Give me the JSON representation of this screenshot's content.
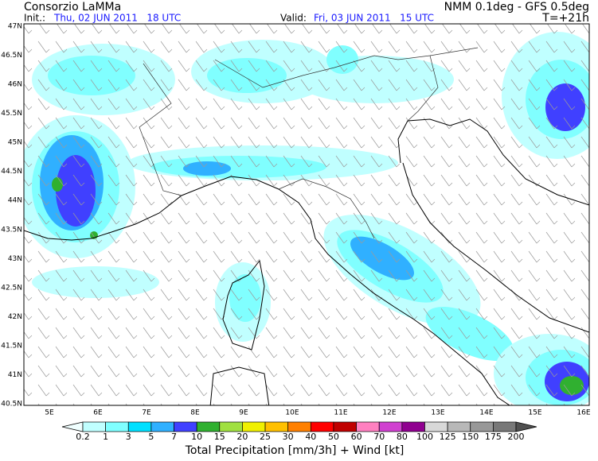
{
  "header": {
    "title": "Consorzio LaMMa",
    "model": "NMM 0.1deg - GFS 0.5deg",
    "init_label": "Init.:",
    "init_time": "Thu, 02 JUN 2011   18 UTC",
    "valid_label": "Valid:",
    "valid_time": "Fri, 03 JUN 2011   15 UTC",
    "lead_time": "T=+21h"
  },
  "map": {
    "lat_labels": [
      "47N",
      "46.5N",
      "46N",
      "45.5N",
      "45N",
      "44.5N",
      "44N",
      "43.5N",
      "43N",
      "42.5N",
      "42N",
      "41.5N",
      "41N",
      "40.5N"
    ],
    "lon_labels": [
      "5E",
      "6E",
      "7E",
      "8E",
      "9E",
      "10E",
      "11E",
      "12E",
      "13E",
      "14E",
      "15E",
      "16E"
    ]
  },
  "colorbar": {
    "levels": [
      0.2,
      1,
      3,
      5,
      7,
      10,
      15,
      20,
      25,
      30,
      40,
      50,
      60,
      70,
      80,
      100,
      125,
      150,
      175,
      200
    ],
    "colors": [
      "#f0ffff",
      "#c0ffff",
      "#80ffff",
      "#00e0ff",
      "#30b0ff",
      "#4040ff",
      "#30b030",
      "#a0e040",
      "#f0f000",
      "#ffc000",
      "#ff8000",
      "#ff0000",
      "#c00000",
      "#ff80c0",
      "#d040d0",
      "#900090",
      "#d8d8d8",
      "#b8b8b8",
      "#989898",
      "#787878",
      "#505050"
    ],
    "title": "Total Precipitation [mm/3h] + Wind [kt]"
  }
}
